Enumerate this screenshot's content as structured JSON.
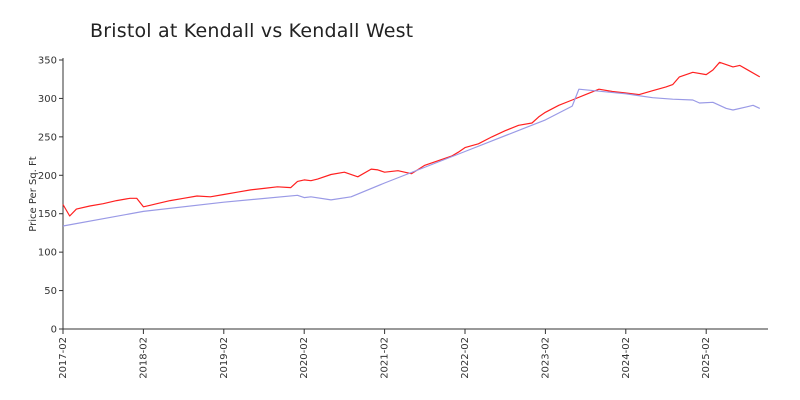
{
  "chart_data": {
    "type": "line",
    "title": "Bristol at Kendall vs Kendall West",
    "ylabel": "Price Per Sq. Ft",
    "xlabel": "",
    "ylim": [
      0,
      350
    ],
    "y_ticks": [
      0,
      50,
      100,
      150,
      200,
      250,
      300,
      350
    ],
    "x_ticks": [
      "2017-02",
      "2018-02",
      "2019-02",
      "2020-02",
      "2021-02",
      "2022-02",
      "2023-02",
      "2024-02",
      "2025-02"
    ],
    "x_start": "2017-02",
    "grid": false,
    "legend": "none",
    "series": [
      {
        "color": "#ff2020",
        "x": [
          "2017-02",
          "2017-03",
          "2017-04",
          "2017-06",
          "2017-08",
          "2017-10",
          "2017-12",
          "2018-01",
          "2018-02",
          "2018-03",
          "2018-04",
          "2018-06",
          "2018-08",
          "2018-10",
          "2018-12",
          "2019-02",
          "2019-04",
          "2019-06",
          "2019-08",
          "2019-10",
          "2019-12",
          "2020-01",
          "2020-02",
          "2020-03",
          "2020-04",
          "2020-06",
          "2020-08",
          "2020-10",
          "2020-12",
          "2021-01",
          "2021-02",
          "2021-04",
          "2021-06",
          "2021-08",
          "2021-10",
          "2021-12",
          "2022-01",
          "2022-02",
          "2022-04",
          "2022-06",
          "2022-08",
          "2022-10",
          "2022-12",
          "2023-01",
          "2023-02",
          "2023-04",
          "2023-06",
          "2023-08",
          "2023-10",
          "2023-12",
          "2024-02",
          "2024-04",
          "2024-06",
          "2024-08",
          "2024-09",
          "2024-10",
          "2024-12",
          "2025-02",
          "2025-03",
          "2025-04",
          "2025-06",
          "2025-07",
          "2025-08",
          "2025-10"
        ],
        "values": [
          162,
          147,
          156,
          160,
          163,
          167,
          170,
          170,
          159,
          161,
          163,
          167,
          170,
          173,
          172,
          175,
          178,
          181,
          183,
          185,
          184,
          192,
          194,
          193,
          195,
          201,
          204,
          198,
          208,
          207,
          204,
          206,
          202,
          213,
          219,
          225,
          230,
          236,
          241,
          250,
          258,
          265,
          268,
          276,
          282,
          291,
          298,
          305,
          312,
          309,
          307,
          305,
          310,
          315,
          318,
          328,
          334,
          331,
          337,
          347,
          341,
          343,
          338,
          328
        ]
      },
      {
        "color": "#9a9ae6",
        "x": [
          "2017-02",
          "2018-02",
          "2019-02",
          "2020-01",
          "2020-02",
          "2020-03",
          "2020-06",
          "2020-09",
          "2021-02",
          "2022-02",
          "2023-02",
          "2023-06",
          "2023-07",
          "2024-02",
          "2024-06",
          "2024-09",
          "2024-12",
          "2025-01",
          "2025-03",
          "2025-05",
          "2025-06",
          "2025-08",
          "2025-09",
          "2025-10"
        ],
        "values": [
          134,
          153,
          165,
          174,
          171,
          172,
          168,
          172,
          190,
          231,
          272,
          290,
          312,
          306,
          301,
          299,
          298,
          294,
          295,
          287,
          285,
          289,
          291,
          287
        ]
      }
    ]
  }
}
